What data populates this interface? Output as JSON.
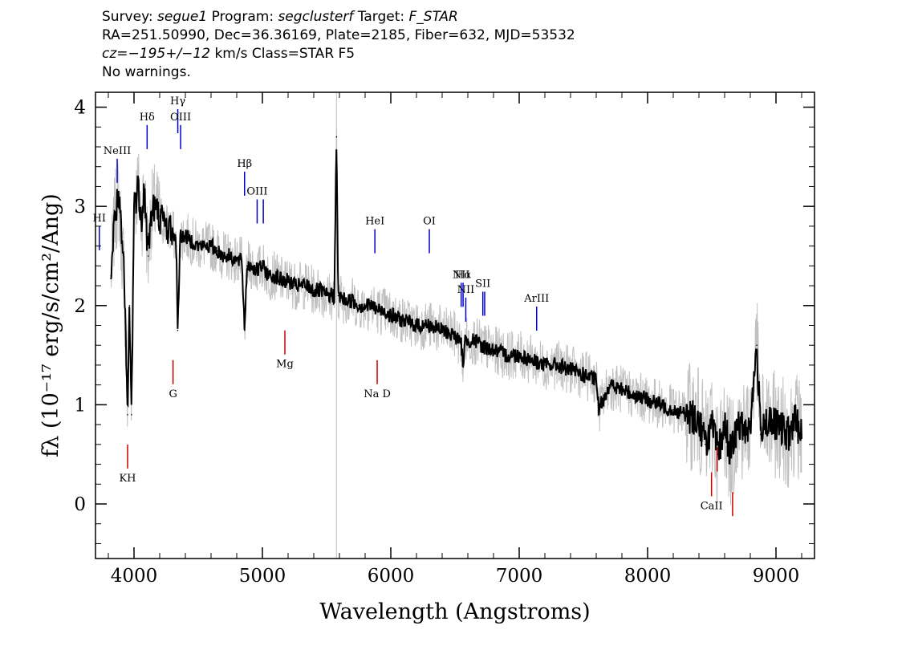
{
  "header": {
    "line1": {
      "survey_label": "Survey: ",
      "survey": "segue1",
      "program_label": " Program: ",
      "program": "segclusterf",
      "target_label": " Target: ",
      "target": "F_STAR"
    },
    "line2": "RA=251.50990, Dec=36.36169, Plate=2185, Fiber=632, MJD=53532",
    "line3": {
      "cz": "cz=−195+/−12",
      "rest": " km/s Class=STAR F5"
    },
    "line4": "No warnings."
  },
  "chart_data": {
    "type": "line",
    "title": "",
    "xlabel": "Wavelength (Angstroms)",
    "ylabel": "fλ (10⁻¹⁷ erg/s/cm²/Ang)",
    "xlim": [
      3700,
      9300
    ],
    "ylim": [
      -0.55,
      4.15
    ],
    "x_ticks": [
      4000,
      5000,
      6000,
      7000,
      8000,
      9000
    ],
    "x_tick_labels": [
      "4000",
      "5000",
      "6000",
      "7000",
      "8000",
      "9000"
    ],
    "y_ticks": [
      0,
      1,
      2,
      3,
      4
    ],
    "y_tick_labels": [
      "0",
      "1",
      "2",
      "3",
      "4"
    ],
    "grid": false,
    "colors": {
      "flux": "#000000",
      "error": "#c0c0c0",
      "emission": "#0000cc",
      "absorption": "#cc0000"
    },
    "series": [
      {
        "name": "",
        "role": "flux",
        "x": [
          3820,
          3850,
          3880,
          3900,
          3920,
          3950,
          3965,
          3980,
          4000,
          4030,
          4060,
          4080,
          4100,
          4110,
          4130,
          4160,
          4200,
          4250,
          4300,
          4330,
          4340,
          4360,
          4400,
          4450,
          4500,
          4550,
          4600,
          4650,
          4700,
          4750,
          4800,
          4840,
          4861,
          4880,
          4920,
          4960,
          5000,
          5050,
          5100,
          5150,
          5200,
          5250,
          5300,
          5350,
          5400,
          5450,
          5500,
          5560,
          5577,
          5590,
          5650,
          5700,
          5750,
          5800,
          5850,
          5900,
          5950,
          6000,
          6100,
          6200,
          6300,
          6400,
          6500,
          6550,
          6563,
          6580,
          6650,
          6700,
          6800,
          6900,
          7000,
          7100,
          7200,
          7300,
          7400,
          7500,
          7600,
          7620,
          7700,
          7800,
          7900,
          8000,
          8100,
          8200,
          8300,
          8400,
          8450,
          8500,
          8550,
          8600,
          8650,
          8700,
          8750,
          8800,
          8850,
          8880,
          8900,
          8950,
          9000,
          9050,
          9100,
          9150,
          9200
        ],
        "y": [
          2.3,
          2.9,
          3.1,
          2.7,
          2.4,
          0.9,
          2.0,
          0.9,
          3.0,
          3.2,
          2.9,
          3.2,
          2.7,
          2.5,
          2.9,
          3.0,
          2.9,
          2.8,
          2.75,
          2.6,
          1.75,
          2.7,
          2.7,
          2.65,
          2.6,
          2.6,
          2.6,
          2.55,
          2.5,
          2.5,
          2.45,
          2.45,
          1.75,
          2.4,
          2.4,
          2.35,
          2.4,
          2.3,
          2.3,
          2.25,
          2.25,
          2.2,
          2.2,
          2.2,
          2.15,
          2.15,
          2.1,
          2.1,
          3.7,
          2.1,
          2.05,
          2.05,
          2.0,
          2.0,
          2.0,
          1.95,
          1.95,
          1.9,
          1.85,
          1.8,
          1.8,
          1.75,
          1.7,
          1.6,
          1.4,
          1.65,
          1.65,
          1.6,
          1.55,
          1.5,
          1.5,
          1.45,
          1.4,
          1.4,
          1.35,
          1.3,
          1.25,
          0.95,
          1.2,
          1.15,
          1.1,
          1.05,
          1.0,
          0.95,
          0.9,
          0.85,
          0.6,
          0.8,
          0.5,
          0.8,
          0.5,
          0.8,
          0.75,
          0.8,
          1.6,
          0.7,
          0.85,
          0.8,
          0.8,
          0.75,
          0.7,
          0.85,
          0.7
        ]
      }
    ],
    "spectral_lines": [
      {
        "label": "NeIII",
        "wavelength": 3869,
        "color": "#0000cc",
        "level": 3.48
      },
      {
        "label": "Hδ",
        "wavelength": 4102,
        "color": "#0000cc",
        "level": 3.82
      },
      {
        "label": "Hγ",
        "wavelength": 4341,
        "color": "#0000cc",
        "level": 3.98
      },
      {
        "label": "OIII",
        "wavelength": 4363,
        "color": "#0000cc",
        "level": 3.82
      },
      {
        "label": "Hβ",
        "wavelength": 4861,
        "color": "#0000cc",
        "level": 3.35
      },
      {
        "label": "OIII",
        "wavelength": 4959,
        "color": "#0000cc",
        "level": 3.07
      },
      {
        "label": "",
        "wavelength": 5007,
        "color": "#0000cc",
        "level": 3.07
      },
      {
        "label": "HeI",
        "wavelength": 5876,
        "color": "#0000cc",
        "level": 2.77
      },
      {
        "label": "OI",
        "wavelength": 6300,
        "color": "#0000cc",
        "level": 2.77
      },
      {
        "label": "NII",
        "wavelength": 6548,
        "color": "#0000cc",
        "level": 2.23
      },
      {
        "label": "Hα",
        "wavelength": 6563,
        "color": "#0000cc",
        "level": 2.23
      },
      {
        "label": "NII",
        "wavelength": 6584,
        "color": "#0000cc",
        "level": 2.08
      },
      {
        "label": "SII",
        "wavelength": 6717,
        "color": "#0000cc",
        "level": 2.14
      },
      {
        "label": "",
        "wavelength": 6731,
        "color": "#0000cc",
        "level": 2.14
      },
      {
        "label": "ArIII",
        "wavelength": 7136,
        "color": "#0000cc",
        "level": 1.99
      },
      {
        "label": "HI",
        "wavelength": 3730,
        "color": "#0000cc",
        "level": 2.8
      },
      {
        "label": "KH",
        "wavelength": 3950,
        "color": "#cc0000",
        "level": 0.6
      },
      {
        "label": "G",
        "wavelength": 4304,
        "color": "#cc0000",
        "level": 1.45
      },
      {
        "label": "Mg",
        "wavelength": 5175,
        "color": "#cc0000",
        "level": 1.75
      },
      {
        "label": "Na D",
        "wavelength": 5894,
        "color": "#cc0000",
        "level": 1.45
      },
      {
        "label": "CaII",
        "wavelength": 8498,
        "color": "#cc0000",
        "level": 0.32
      },
      {
        "label": "",
        "wavelength": 8542,
        "color": "#cc0000",
        "level": 0.57
      },
      {
        "label": "",
        "wavelength": 8662,
        "color": "#cc0000",
        "level": 0.12
      }
    ]
  }
}
